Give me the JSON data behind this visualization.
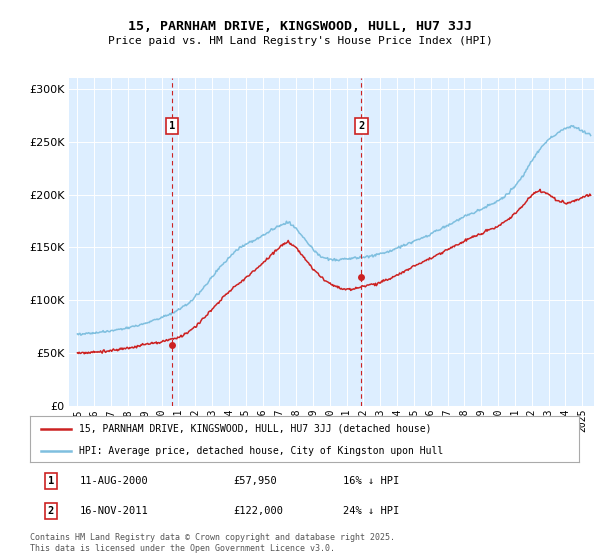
{
  "title": "15, PARNHAM DRIVE, KINGSWOOD, HULL, HU7 3JJ",
  "subtitle": "Price paid vs. HM Land Registry's House Price Index (HPI)",
  "legend_line1": "15, PARNHAM DRIVE, KINGSWOOD, HULL, HU7 3JJ (detached house)",
  "legend_line2": "HPI: Average price, detached house, City of Kingston upon Hull",
  "footnote": "Contains HM Land Registry data © Crown copyright and database right 2025.\nThis data is licensed under the Open Government Licence v3.0.",
  "sale1_date": "11-AUG-2000",
  "sale1_price": 57950,
  "sale1_label": "16% ↓ HPI",
  "sale2_date": "16-NOV-2011",
  "sale2_price": 122000,
  "sale2_label": "24% ↓ HPI",
  "sale1_x": 2000.61,
  "sale2_x": 2011.88,
  "sale1_y": 57950,
  "sale2_y": 122000,
  "hpi_color": "#7fbfdf",
  "price_color": "#cc2222",
  "background_color": "#ddeeff",
  "vline_color": "#cc2222",
  "box_color": "#cc2222",
  "ylim": [
    0,
    310000
  ],
  "xlim_start": 1994.5,
  "xlim_end": 2025.7,
  "yticks": [
    0,
    50000,
    100000,
    150000,
    200000,
    250000,
    300000
  ]
}
